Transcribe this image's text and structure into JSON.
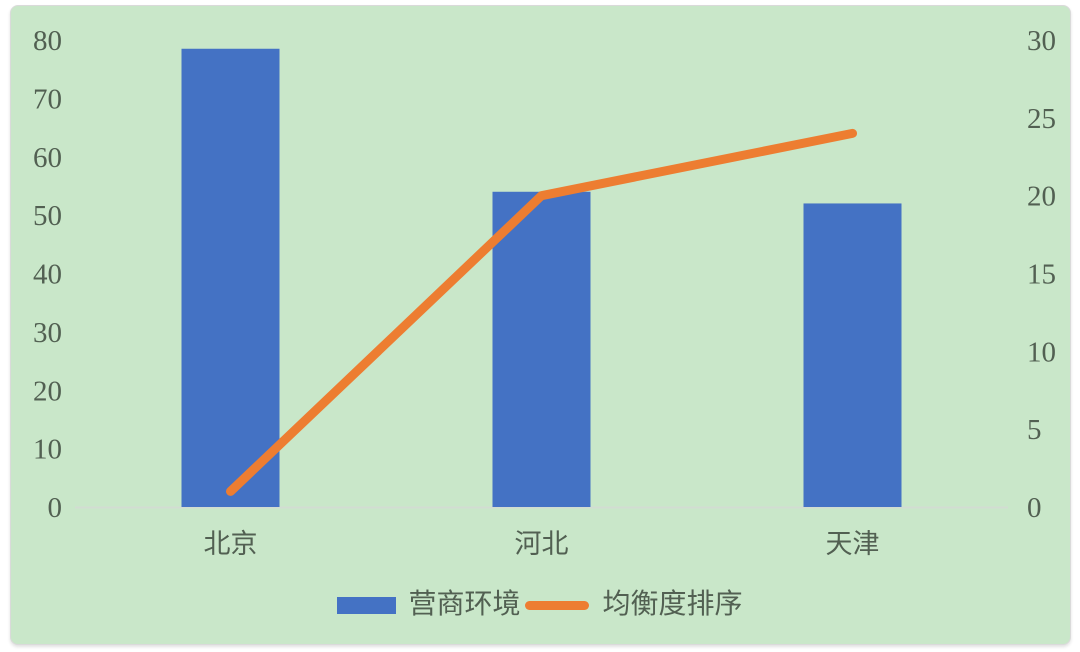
{
  "colors": {
    "page_bg": "#ffffff",
    "card_bg": "#c9e7c9",
    "card_border": "#dadada",
    "text": "#526052",
    "axis_line": "#d2dcd2",
    "bar": "#4472c4",
    "line": "#ed7d31"
  },
  "chart_data": {
    "type": "combo-bar-line",
    "title": "",
    "categories": [
      "北京",
      "河北",
      "天津"
    ],
    "series": [
      {
        "name": "营商环境",
        "type": "bar",
        "axis": "left",
        "color": "#4472c4",
        "values": [
          78.5,
          54,
          52
        ]
      },
      {
        "name": "均衡度排序",
        "type": "line",
        "axis": "right",
        "color": "#ed7d31",
        "values": [
          1,
          20,
          24
        ]
      }
    ],
    "left_axis": {
      "min": 0,
      "max": 80,
      "step": 10,
      "tick_labels": [
        "0",
        "10",
        "20",
        "30",
        "40",
        "50",
        "60",
        "70",
        "80"
      ]
    },
    "right_axis": {
      "min": 0,
      "max": 30,
      "step": 5,
      "tick_labels": [
        "0",
        "5",
        "10",
        "15",
        "20",
        "25",
        "30"
      ]
    },
    "legend_position": "bottom",
    "grid": false
  }
}
